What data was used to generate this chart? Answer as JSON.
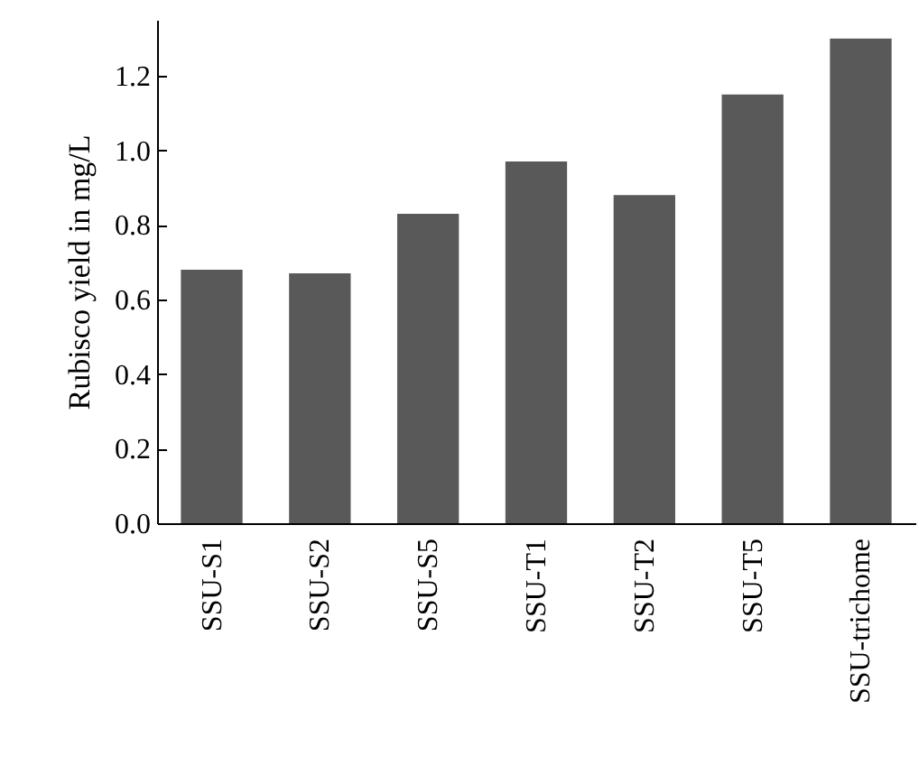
{
  "chart_data": {
    "type": "bar",
    "ylabel": "Rubisco yield in mg/L",
    "categories": [
      "SSU-S1",
      "SSU-S2",
      "SSU-S5",
      "SSU-T1",
      "SSU-T2",
      "SSU-T5",
      "SSU-trichome"
    ],
    "values": [
      0.68,
      0.67,
      0.83,
      0.97,
      0.88,
      1.15,
      1.3
    ],
    "color": "#595959",
    "ylim": [
      0,
      1.35
    ],
    "yticks": [
      {
        "value": 0,
        "label": "0.0"
      },
      {
        "value": 0.2,
        "label": "0.2"
      },
      {
        "value": 0.4,
        "label": "0.4"
      },
      {
        "value": 0.6,
        "label": "0.6"
      },
      {
        "value": 0.8,
        "label": "0.8"
      },
      {
        "value": 1,
        "label": "1.0"
      },
      {
        "value": 1.2,
        "label": "1.2"
      }
    ],
    "grid": false
  }
}
